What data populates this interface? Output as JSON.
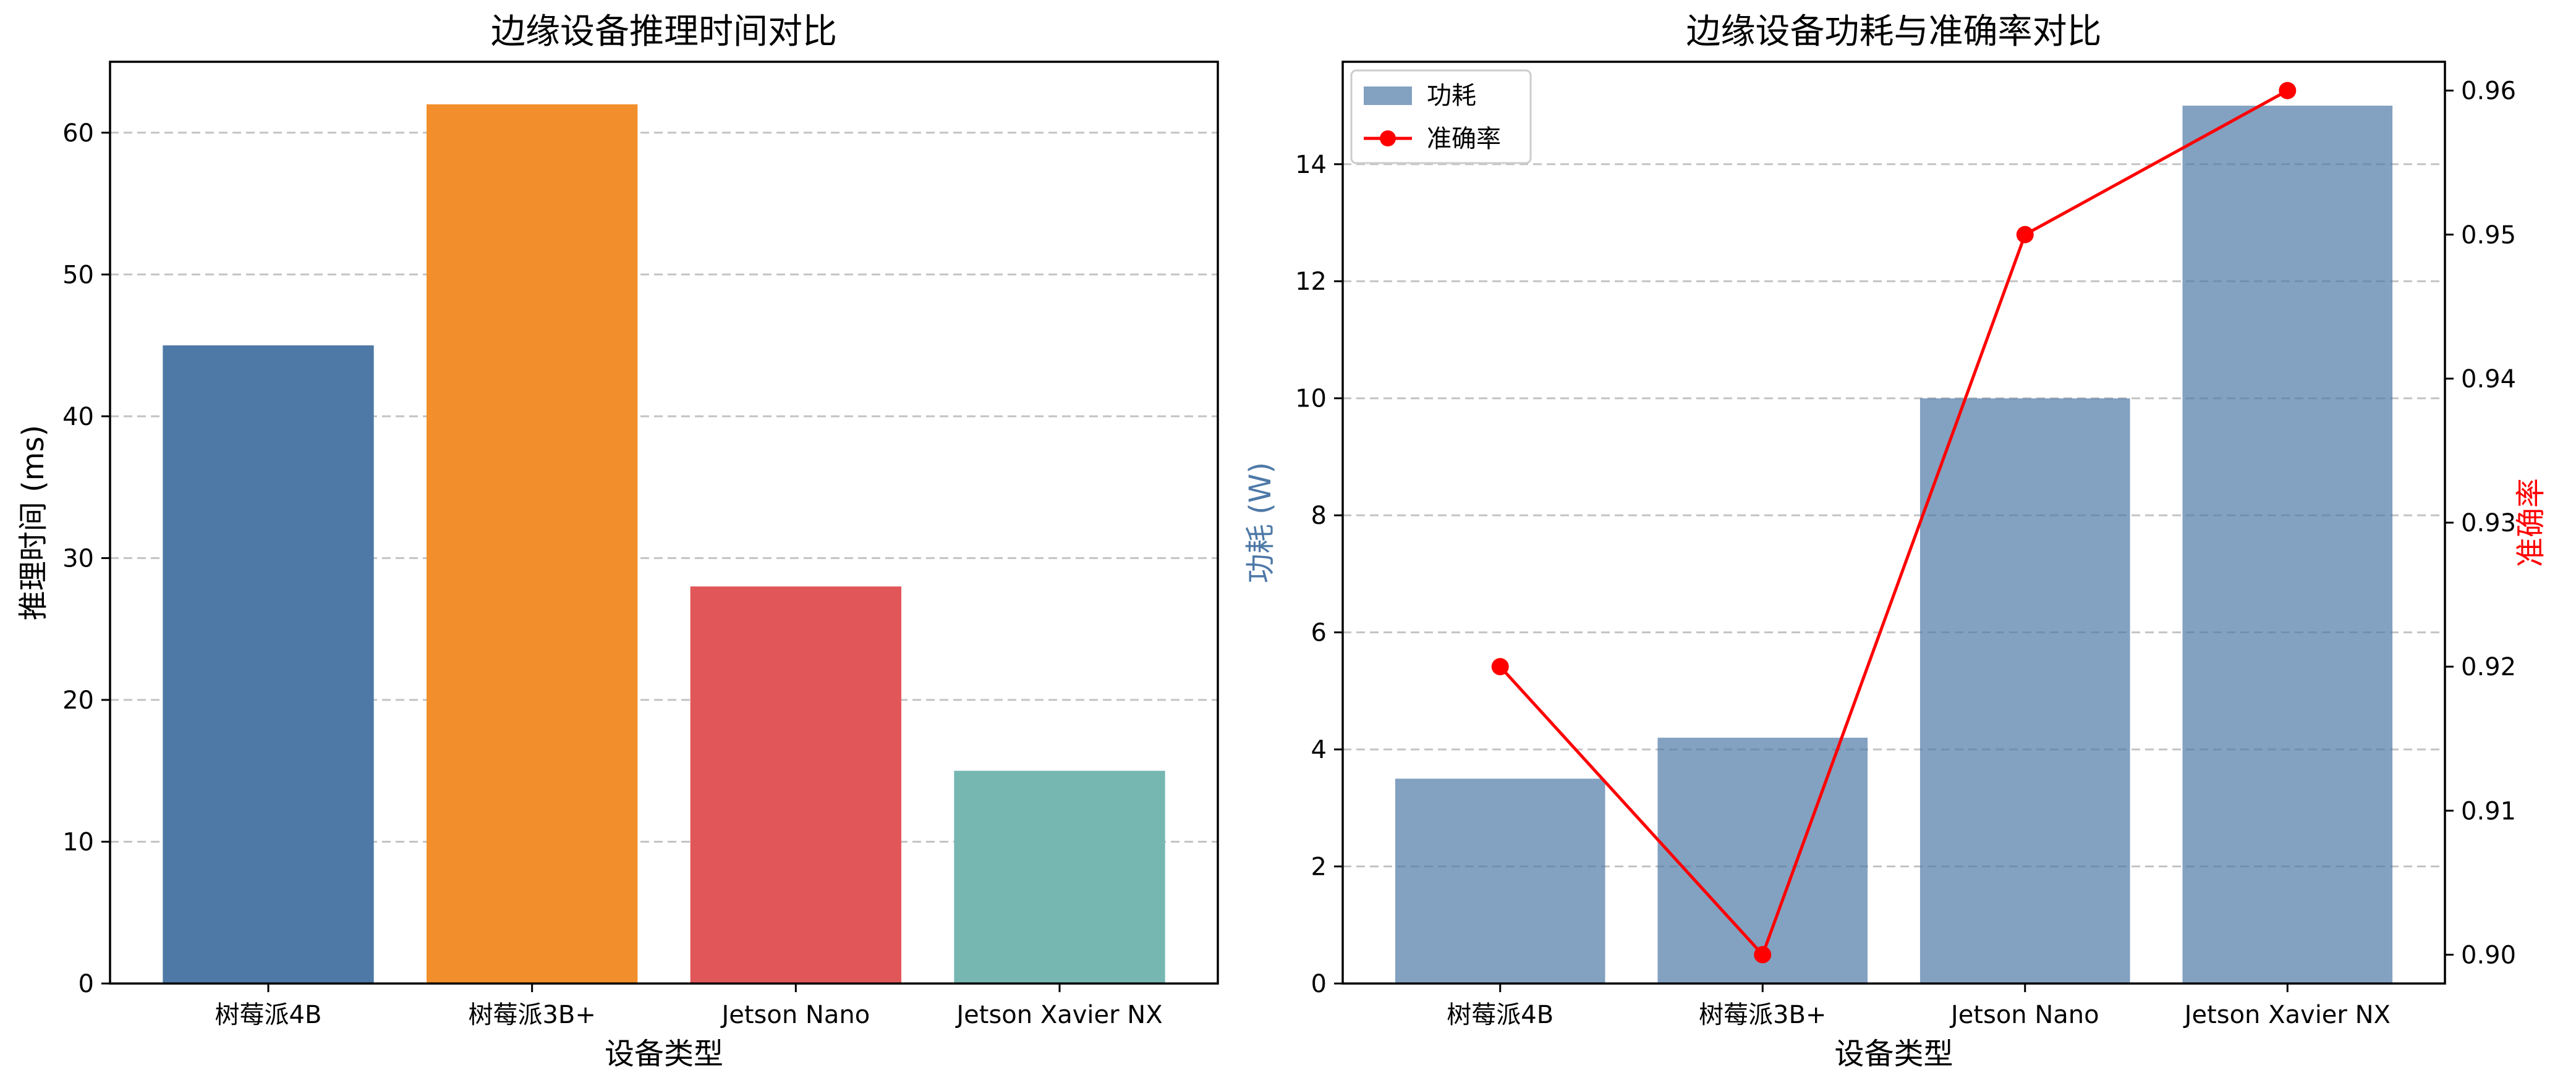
{
  "chart_data": [
    {
      "type": "bar",
      "title": "边缘设备推理时间对比",
      "xlabel": "设备类型",
      "ylabel": "推理时间 (ms)",
      "categories": [
        "树莓派4B",
        "树莓派3B+",
        "Jetson Nano",
        "Jetson Xavier NX"
      ],
      "values": [
        45,
        62,
        28,
        15
      ],
      "colors": [
        "#4e79a7",
        "#f28e2b",
        "#e15759",
        "#76b7b2"
      ],
      "ylim": [
        0,
        65
      ],
      "yticks": [
        0,
        10,
        20,
        30,
        40,
        50,
        60
      ],
      "grid": "y-dashed"
    },
    {
      "type": "bar+line",
      "title": "边缘设备功耗与准确率对比",
      "xlabel": "设备类型",
      "ylabel": "功耗 (W)",
      "ylabel_right": "准确率",
      "categories": [
        "树莓派4B",
        "树莓派3B+",
        "Jetson Nano",
        "Jetson Xavier NX"
      ],
      "series": [
        {
          "name": "功耗",
          "kind": "bar",
          "axis": "left",
          "values": [
            3.5,
            4.2,
            10,
            15
          ],
          "color": "#4e79a7"
        },
        {
          "name": "准确率",
          "kind": "line",
          "axis": "right",
          "values": [
            0.92,
            0.9,
            0.95,
            0.96
          ],
          "color": "#ff0000"
        }
      ],
      "ylim": [
        0,
        15.75
      ],
      "yticks": [
        0,
        2,
        4,
        6,
        8,
        10,
        12,
        14
      ],
      "ylim_right": [
        0.898,
        0.962
      ],
      "yticks_right": [
        "0.90",
        "0.91",
        "0.92",
        "0.93",
        "0.94",
        "0.95",
        "0.96"
      ],
      "legend": "top-left",
      "grid": "y-dashed",
      "ylabel_color": "#4e79a7",
      "ylabel_right_color": "#ff0000"
    }
  ]
}
